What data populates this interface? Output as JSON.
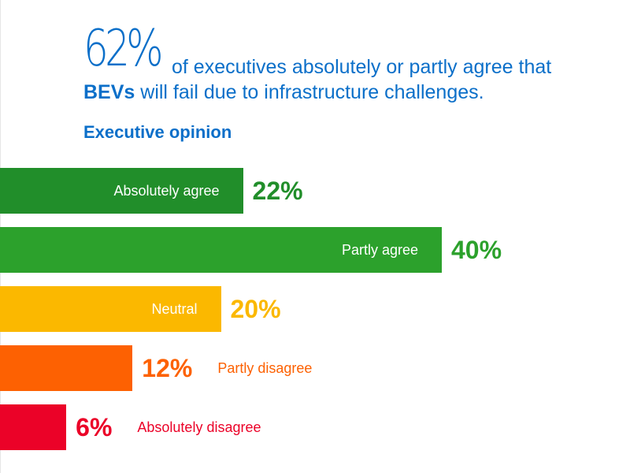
{
  "headline": {
    "stat": "62%",
    "text_line1": "of executives absolutely or partly agree that",
    "text_bold": "BEVs",
    "text_line2": "will fail due to infrastructure challenges."
  },
  "chart_data": {
    "type": "bar",
    "orientation": "horizontal",
    "title": "Executive opinion",
    "xlabel": "",
    "ylabel": "",
    "grid": false,
    "legend": "none",
    "categories": [
      "Absolutely agree",
      "Partly agree",
      "Neutral",
      "Partly disagree",
      "Absolutely disagree"
    ],
    "values": [
      22,
      40,
      20,
      12,
      6
    ],
    "value_labels": [
      "22%",
      "40%",
      "20%",
      "12%",
      "6%"
    ],
    "label_inside_bar": [
      true,
      true,
      true,
      false,
      false
    ],
    "colors": [
      "#218e2a",
      "#2ca12c",
      "#fbb800",
      "#fd6102",
      "#eb0228"
    ],
    "text_colors": [
      "#218e2a",
      "#2ca12c",
      "#fbb800",
      "#fd6102",
      "#eb0228"
    ],
    "xlim": [
      0,
      40
    ]
  }
}
